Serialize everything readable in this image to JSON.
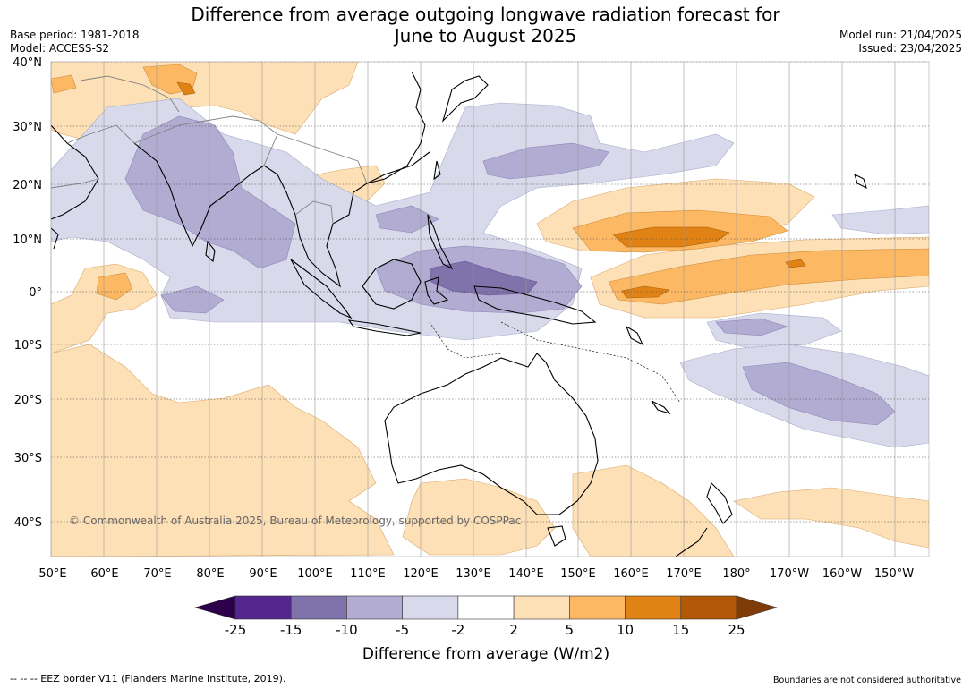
{
  "title_line1": "Difference from average outgoing longwave radiation forecast for",
  "title_line2": "June to August 2025",
  "base_period": "Base period: 1981-2018",
  "model": "Model: ACCESS-S2",
  "model_run": "Model run: 21/04/2025",
  "issued": "Issued: 23/04/2025",
  "copyright": "© Commonwealth of Australia 2025, Bureau of Meteorology, supported by COSPPac",
  "lat_labels": [
    "40°N",
    "30°N",
    "20°N",
    "10°N",
    "0°",
    "10°S",
    "20°S",
    "30°S",
    "40°S"
  ],
  "lon_labels": [
    "50°E",
    "60°E",
    "70°E",
    "80°E",
    "90°E",
    "100°E",
    "110°E",
    "120°E",
    "130°E",
    "140°E",
    "150°E",
    "160°E",
    "170°E",
    "180°",
    "170°W",
    "160°W",
    "150°W"
  ],
  "colorbar": {
    "title": "Difference from average (W/m2)",
    "tick_labels": [
      "-25",
      "-15",
      "-10",
      "-5",
      "-2",
      "2",
      "5",
      "10",
      "15",
      "25"
    ],
    "colors": [
      "#2d004b",
      "#54278f",
      "#8073ac",
      "#b2abd2",
      "#d8daeb",
      "#ffffff",
      "#fee0b6",
      "#fdb863",
      "#e08214",
      "#b35806",
      "#7f3b08"
    ]
  },
  "footnote_left": "--  --  -- EEZ border V11 (Flanders Marine Institute, 2019).",
  "footnote_right": "Boundaries are not considered authoritative"
}
